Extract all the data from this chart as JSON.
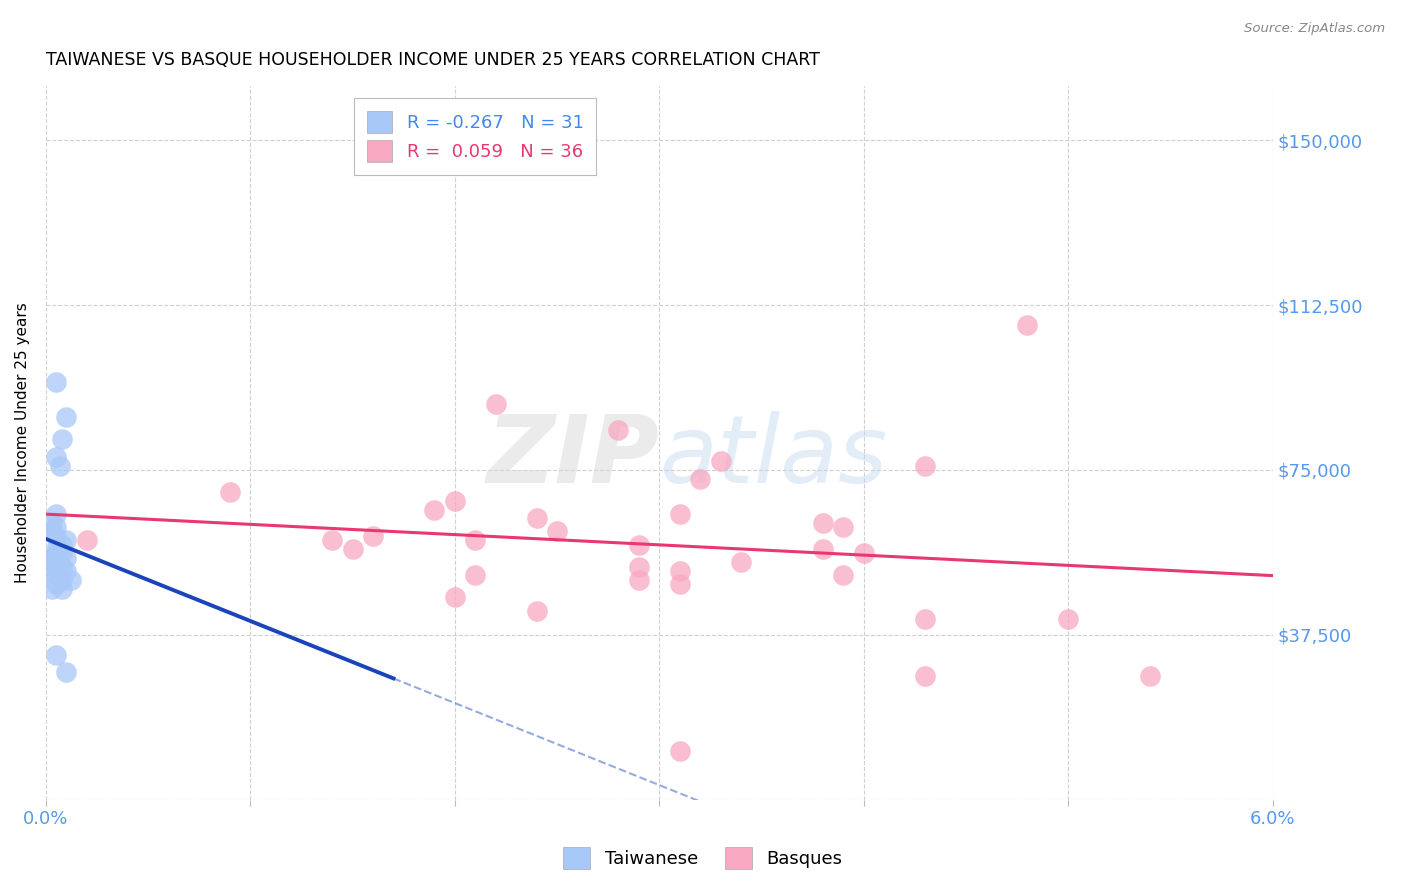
{
  "title": "TAIWANESE VS BASQUE HOUSEHOLDER INCOME UNDER 25 YEARS CORRELATION CHART",
  "source": "Source: ZipAtlas.com",
  "ylabel": "Householder Income Under 25 years",
  "xlim": [
    0.0,
    0.06
  ],
  "ylim": [
    0,
    162500
  ],
  "yticks": [
    0,
    37500,
    75000,
    112500,
    150000
  ],
  "ytick_labels": [
    "",
    "$37,500",
    "$75,000",
    "$112,500",
    "$150,000"
  ],
  "background_color": "#ffffff",
  "grid_color": "#d0d0d0",
  "taiwanese_color": "#a8c8f8",
  "basque_color": "#f8a8c0",
  "taiwanese_line_color": "#1a44bb",
  "basque_line_color": "#e83870",
  "taiwanese_R": -0.267,
  "taiwanese_N": 31,
  "basque_R": 0.059,
  "basque_N": 36,
  "taiwanese_points": [
    [
      0.0005,
      95000
    ],
    [
      0.001,
      87000
    ],
    [
      0.0008,
      82000
    ],
    [
      0.0005,
      78000
    ],
    [
      0.0007,
      76000
    ],
    [
      0.0005,
      65000
    ],
    [
      0.0003,
      63000
    ],
    [
      0.0005,
      62000
    ],
    [
      0.0003,
      61000
    ],
    [
      0.0005,
      60000
    ],
    [
      0.001,
      59000
    ],
    [
      0.0008,
      58000
    ],
    [
      0.0005,
      57000
    ],
    [
      0.0005,
      56000
    ],
    [
      0.0008,
      56000
    ],
    [
      0.0003,
      55000
    ],
    [
      0.0005,
      55000
    ],
    [
      0.001,
      55000
    ],
    [
      0.0003,
      54000
    ],
    [
      0.0005,
      53000
    ],
    [
      0.0008,
      53000
    ],
    [
      0.0003,
      52000
    ],
    [
      0.001,
      52000
    ],
    [
      0.0005,
      51000
    ],
    [
      0.0008,
      50000
    ],
    [
      0.0012,
      50000
    ],
    [
      0.0005,
      49000
    ],
    [
      0.0003,
      48000
    ],
    [
      0.0008,
      48000
    ],
    [
      0.0005,
      33000
    ],
    [
      0.001,
      29000
    ]
  ],
  "basque_points": [
    [
      0.048,
      108000
    ],
    [
      0.022,
      90000
    ],
    [
      0.028,
      84000
    ],
    [
      0.033,
      77000
    ],
    [
      0.043,
      76000
    ],
    [
      0.032,
      73000
    ],
    [
      0.009,
      70000
    ],
    [
      0.02,
      68000
    ],
    [
      0.019,
      66000
    ],
    [
      0.031,
      65000
    ],
    [
      0.024,
      64000
    ],
    [
      0.038,
      63000
    ],
    [
      0.039,
      62000
    ],
    [
      0.025,
      61000
    ],
    [
      0.016,
      60000
    ],
    [
      0.014,
      59000
    ],
    [
      0.021,
      59000
    ],
    [
      0.029,
      58000
    ],
    [
      0.015,
      57000
    ],
    [
      0.038,
      57000
    ],
    [
      0.04,
      56000
    ],
    [
      0.034,
      54000
    ],
    [
      0.029,
      53000
    ],
    [
      0.031,
      52000
    ],
    [
      0.021,
      51000
    ],
    [
      0.039,
      51000
    ],
    [
      0.029,
      50000
    ],
    [
      0.031,
      49000
    ],
    [
      0.02,
      46000
    ],
    [
      0.024,
      43000
    ],
    [
      0.043,
      41000
    ],
    [
      0.05,
      41000
    ],
    [
      0.043,
      28000
    ],
    [
      0.031,
      11000
    ],
    [
      0.054,
      28000
    ],
    [
      0.002,
      59000
    ]
  ],
  "tw_line_x_end_solid": 0.017,
  "tw_line_x_end_dashed": 0.06
}
